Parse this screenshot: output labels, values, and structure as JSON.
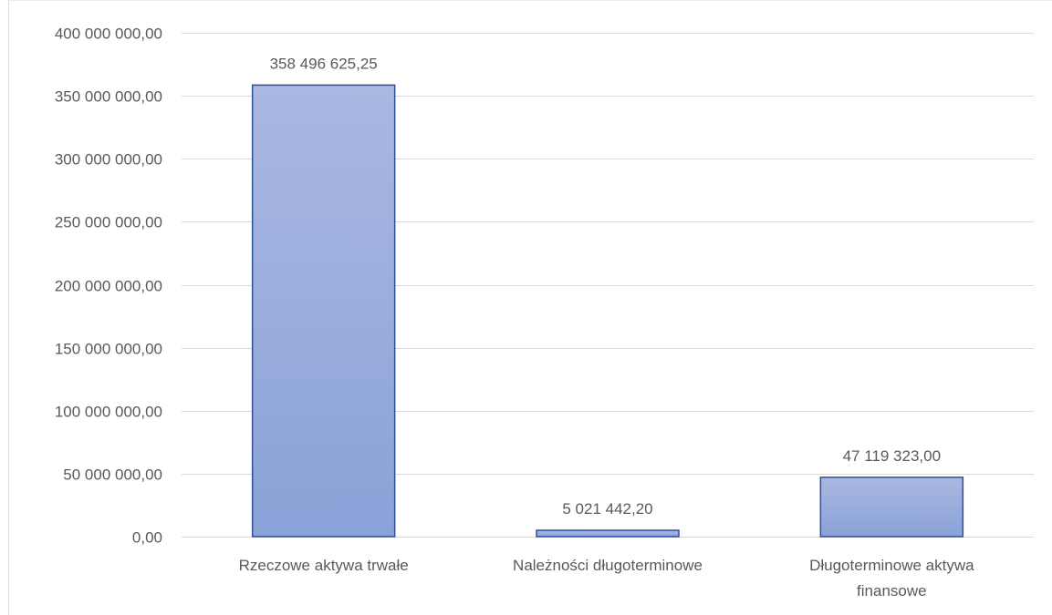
{
  "chart_data": {
    "type": "bar",
    "categories": [
      [
        "Rzeczowe aktywa trwałe"
      ],
      [
        "Należności długoterminowe"
      ],
      [
        "Długoterminowe aktywa",
        "finansowe"
      ]
    ],
    "values": [
      358496625.25,
      5021442.2,
      47119323.0
    ],
    "data_labels": [
      "358 496 625,25",
      "5 021 442,20",
      "47 119 323,00"
    ],
    "y_ticks": [
      0,
      50000000,
      100000000,
      150000000,
      200000000,
      250000000,
      300000000,
      350000000,
      400000000
    ],
    "y_tick_labels": [
      "0,00",
      "50 000 000,00",
      "100 000 000,00",
      "150 000 000,00",
      "200 000 000,00",
      "250 000 000,00",
      "300 000 000,00",
      "350 000 000,00",
      "400 000 000,00"
    ],
    "ylim": [
      0,
      400000000
    ],
    "title": "",
    "xlabel": "",
    "ylabel": "",
    "grid": true,
    "legend": "none",
    "colors": {
      "bar_top": "#aab8e2",
      "bar_bottom": "#8aa2d8",
      "bar_stroke": "#2f4f9f",
      "grid": "#d9d9d9",
      "text": "#595959",
      "frame": "#d9d9d9"
    }
  }
}
